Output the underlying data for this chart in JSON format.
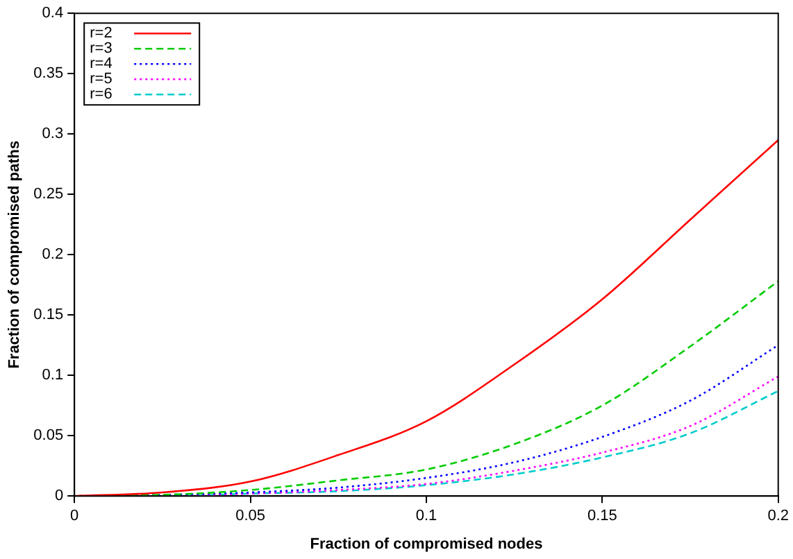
{
  "chart_data": {
    "type": "line",
    "xlabel": "Fraction of compromised nodes",
    "ylabel": "Fraction of compromised paths",
    "x": [
      0,
      0.025,
      0.05,
      0.075,
      0.1,
      0.125,
      0.15,
      0.175,
      0.2
    ],
    "xlim": [
      0,
      0.2
    ],
    "xticks": [
      0,
      0.05,
      0.1,
      0.15,
      0.2
    ],
    "ylim": [
      0,
      0.4
    ],
    "yticks": [
      0,
      0.05,
      0.1,
      0.15,
      0.2,
      0.25,
      0.3,
      0.35,
      0.4
    ],
    "grid": false,
    "legend": "top left",
    "marker": "none",
    "series": [
      {
        "name": "r=2",
        "color": "#ff0000",
        "line_style": "solid",
        "values": [
          0,
          0.003,
          0.012,
          0.034,
          0.062,
          0.109,
          0.163,
          0.229,
          0.295
        ]
      },
      {
        "name": "r=3",
        "color": "#00cc00",
        "line_style": "dashed",
        "values": [
          0,
          0.001,
          0.005,
          0.013,
          0.022,
          0.043,
          0.075,
          0.124,
          0.178
        ]
      },
      {
        "name": "r=4",
        "color": "#0000ff",
        "line_style": "dotted",
        "values": [
          0,
          0.001,
          0.003,
          0.007,
          0.015,
          0.028,
          0.049,
          0.079,
          0.125
        ]
      },
      {
        "name": "r=5",
        "color": "#ff00ff",
        "line_style": "dotted",
        "values": [
          0,
          0,
          0.002,
          0.005,
          0.01,
          0.021,
          0.036,
          0.058,
          0.099
        ]
      },
      {
        "name": "r=6",
        "color": "#00cccc",
        "line_style": "dashed",
        "values": [
          0,
          0,
          0.002,
          0.004,
          0.009,
          0.018,
          0.032,
          0.052,
          0.087
        ]
      }
    ]
  }
}
